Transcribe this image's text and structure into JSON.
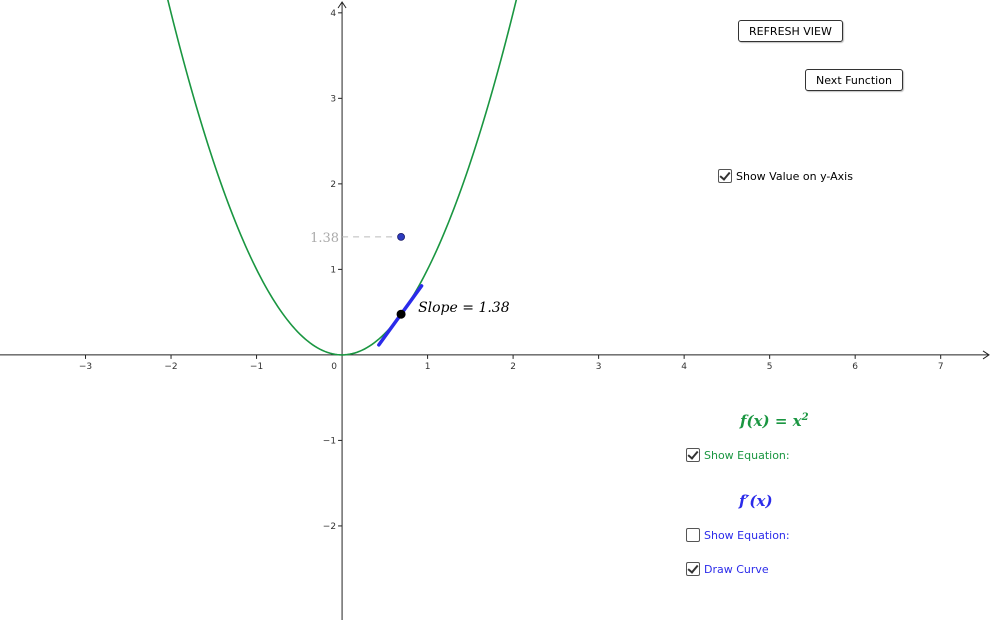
{
  "buttons": {
    "refresh_label": "REFRESH VIEW",
    "next_label": "Next Function"
  },
  "controls": {
    "show_value_y_axis": {
      "label": "Show Value on y-Axis",
      "checked": true
    },
    "show_f_equation": {
      "label": "Show Equation:",
      "checked": true
    },
    "show_fprime_equation": {
      "label": "Show Equation:",
      "checked": false
    },
    "draw_curve": {
      "label": "Draw Curve",
      "checked": true
    }
  },
  "labels": {
    "f_equation_name": "f(x)",
    "f_equation_eq": " = x",
    "f_equation_power": "2",
    "fprime_name": "f′(x)",
    "slope_text": "Slope = 1.38",
    "y_value_text": "1.38"
  },
  "colors": {
    "curve": "#1a9641",
    "tangent": "#2b2bea",
    "point": "#000000",
    "y_point": "#2d3bbf",
    "axis": "#222222",
    "derivative_text": "#2b2bea",
    "function_text": "#1a9641",
    "guide": "#bbbbbb"
  },
  "chart_data": {
    "type": "line",
    "function": "x^2",
    "xlim": [
      -4,
      7.6
    ],
    "ylim": [
      -3.1,
      4.15
    ],
    "x_ticks": [
      -3,
      -2,
      -1,
      0,
      1,
      2,
      3,
      4,
      5,
      6,
      7
    ],
    "y_ticks": [
      -2,
      -1,
      1,
      2,
      3,
      4
    ],
    "tick_labels_x": [
      "−3",
      "−2",
      "−1",
      "0",
      "1",
      "2",
      "3",
      "4",
      "5",
      "6",
      "7"
    ],
    "tick_labels_y": [
      "−2",
      "−1",
      "1",
      "2",
      "3",
      "4"
    ],
    "point": {
      "x": 0.69,
      "y": 0.476
    },
    "slope": 1.38,
    "tangent_x_range": [
      0.43,
      0.93
    ],
    "y_axis_point": {
      "x": 0.69,
      "y": 1.38
    },
    "grid": false
  }
}
